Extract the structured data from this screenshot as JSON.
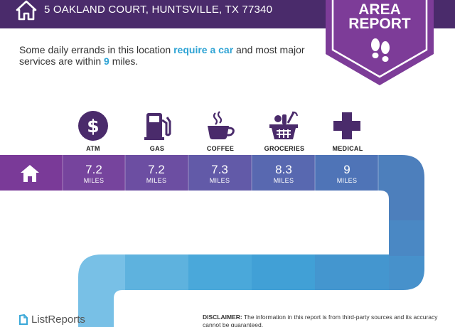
{
  "header": {
    "address": "5 OAKLAND COURT, HUNTSVILLE, TX 77340",
    "background": "#4a2b6b"
  },
  "badge": {
    "line1": "AREA",
    "line2": "REPORT",
    "color": "#7d3c98",
    "icon": "shoes-icon"
  },
  "intro": {
    "part1": "Some daily errands in this location ",
    "highlight1": "require a car",
    "part2": " and most major services are within ",
    "highlight2": "9",
    "part3": " miles.",
    "accent": "#2ea3d4"
  },
  "categories": [
    {
      "label": "ATM",
      "icon": "dollar-icon",
      "distance": "7.2",
      "unit": "MILES"
    },
    {
      "label": "GAS",
      "icon": "gas-pump-icon",
      "distance": "7.2",
      "unit": "MILES"
    },
    {
      "label": "COFFEE",
      "icon": "coffee-cup-icon",
      "distance": "7.3",
      "unit": "MILES"
    },
    {
      "label": "GROCERIES",
      "icon": "grocery-basket-icon",
      "distance": "8.3",
      "unit": "MILES"
    },
    {
      "label": "MEDICAL",
      "icon": "medical-cross-icon",
      "distance": "9",
      "unit": "MILES"
    }
  ],
  "footer": {
    "logo": "ListReports",
    "disclaimer_label": "DISCLAIMER:",
    "disclaimer_text": " The information in this report is from third-party sources and its accuracy cannot be guaranteed."
  }
}
